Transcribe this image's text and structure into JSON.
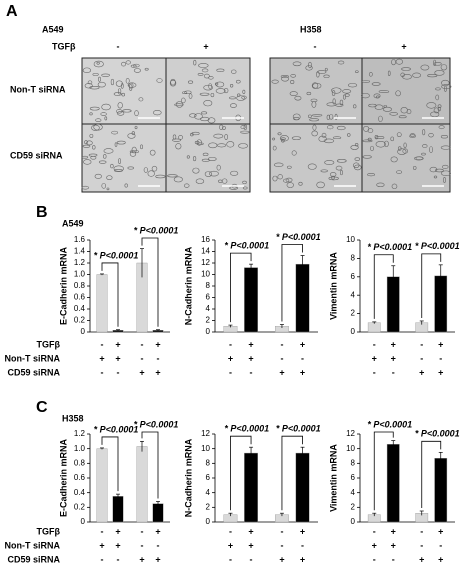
{
  "panel_a": {
    "letter": "A",
    "cell_lines": [
      "A549",
      "H358"
    ],
    "treatment_label": "TGFβ",
    "treatment_signs": [
      "-",
      "+",
      "-",
      "+"
    ],
    "row_labels": [
      "Non-T siRNA",
      "CD59 siRNA"
    ]
  },
  "panels": [
    {
      "letter": "B",
      "cell_line": "A549",
      "condition_labels": [
        "TGFβ",
        "Non-T siRNA",
        "CD59 siRNA"
      ]
    },
    {
      "letter": "C",
      "cell_line": "H358",
      "condition_labels": [
        "TGFβ",
        "Non-T siRNA",
        "CD59 siRNA"
      ]
    }
  ],
  "chart_data": [
    {
      "type": "bar",
      "y_label": "E-Cadherin mRNA",
      "values": [
        1.0,
        0.03,
        1.2,
        0.03
      ],
      "errors": [
        0.01,
        0.01,
        0.25,
        0.01
      ],
      "colors": [
        "#d9d9d9",
        "#000000",
        "#d9d9d9",
        "#000000"
      ],
      "ylim": [
        0,
        1.6
      ],
      "yticks": [
        0,
        0.2,
        0.4,
        0.6,
        0.8,
        {
          "value": 1,
          "label": "1.0"
        },
        1.2,
        1.4,
        1.6
      ],
      "annotations": [
        "* P<0.0001",
        "* P<0.0001"
      ],
      "condition_signs": [
        [
          "-",
          "+",
          "-",
          "+"
        ],
        [
          "+",
          "+",
          "-",
          "-"
        ],
        [
          "-",
          "-",
          "+",
          "+"
        ]
      ]
    },
    {
      "type": "bar",
      "y_label": "N-Cadherin mRNA",
      "values": [
        1,
        11.2,
        1,
        11.8
      ],
      "errors": [
        0.2,
        0.6,
        0.3,
        1.5
      ],
      "colors": [
        "#d9d9d9",
        "#000000",
        "#d9d9d9",
        "#000000"
      ],
      "ylim": [
        0,
        16
      ],
      "yticks": [
        0,
        2,
        4,
        6,
        8,
        10,
        12,
        14,
        16
      ],
      "annotations": [
        "* P<0.0001",
        "* P<0.0001"
      ],
      "condition_signs": [
        [
          "-",
          "+",
          "-",
          "+"
        ],
        [
          "+",
          "+",
          "-",
          "-"
        ],
        [
          "-",
          "-",
          "+",
          "+"
        ]
      ]
    },
    {
      "type": "bar",
      "y_label": "Vimentin mRNA",
      "values": [
        1,
        6,
        1,
        6.1
      ],
      "errors": [
        0.1,
        1.2,
        0.2,
        1.2
      ],
      "colors": [
        "#d9d9d9",
        "#000000",
        "#d9d9d9",
        "#000000"
      ],
      "ylim": [
        0,
        10
      ],
      "yticks": [
        0,
        2,
        4,
        6,
        8,
        10
      ],
      "annotations": [
        "* P<0.0001",
        "* P<0.0001"
      ],
      "condition_signs": [
        [
          "-",
          "+",
          "-",
          "+"
        ],
        [
          "+",
          "+",
          "-",
          "-"
        ],
        [
          "-",
          "-",
          "+",
          "+"
        ]
      ]
    },
    {
      "type": "bar",
      "y_label": "E-Cadherin mRNA",
      "values": [
        1.0,
        0.35,
        1.03,
        0.25
      ],
      "errors": [
        0.01,
        0.03,
        0.07,
        0.03
      ],
      "colors": [
        "#d9d9d9",
        "#000000",
        "#d9d9d9",
        "#000000"
      ],
      "ylim": [
        0,
        1.2
      ],
      "yticks": [
        0,
        0.2,
        0.4,
        0.6,
        0.8,
        {
          "value": 1,
          "label": "1.0"
        },
        1.2
      ],
      "annotations": [
        "* P<0.0001",
        "* P<0.0001"
      ],
      "condition_signs": [
        [
          "-",
          "+",
          "-",
          "+"
        ],
        [
          "+",
          "+",
          "-",
          "-"
        ],
        [
          "-",
          "-",
          "+",
          "+"
        ]
      ]
    },
    {
      "type": "bar",
      "y_label": "N-Cadherin mRNA",
      "values": [
        1,
        9.4,
        1,
        9.4
      ],
      "errors": [
        0.2,
        0.8,
        0.2,
        0.8
      ],
      "colors": [
        "#d9d9d9",
        "#000000",
        "#d9d9d9",
        "#000000"
      ],
      "ylim": [
        0,
        12
      ],
      "yticks": [
        0,
        2,
        4,
        6,
        8,
        10,
        12
      ],
      "annotations": [
        "* P<0.0001",
        "* P<0.0001"
      ],
      "condition_signs": [
        [
          "-",
          "+",
          "-",
          "+"
        ],
        [
          "+",
          "+",
          "-",
          "-"
        ],
        [
          "-",
          "-",
          "+",
          "+"
        ]
      ]
    },
    {
      "type": "bar",
      "y_label": "Vimentin mRNA",
      "values": [
        1,
        10.6,
        1.2,
        8.7
      ],
      "errors": [
        0.2,
        0.5,
        0.3,
        0.8
      ],
      "colors": [
        "#d9d9d9",
        "#000000",
        "#d9d9d9",
        "#000000"
      ],
      "ylim": [
        0,
        12
      ],
      "yticks": [
        0,
        2,
        4,
        6,
        8,
        10,
        12
      ],
      "annotations": [
        "* P<0.0001",
        "* P<0.0001"
      ],
      "condition_signs": [
        [
          "-",
          "+",
          "-",
          "+"
        ],
        [
          "+",
          "+",
          "-",
          "-"
        ],
        [
          "-",
          "-",
          "+",
          "+"
        ]
      ]
    }
  ]
}
